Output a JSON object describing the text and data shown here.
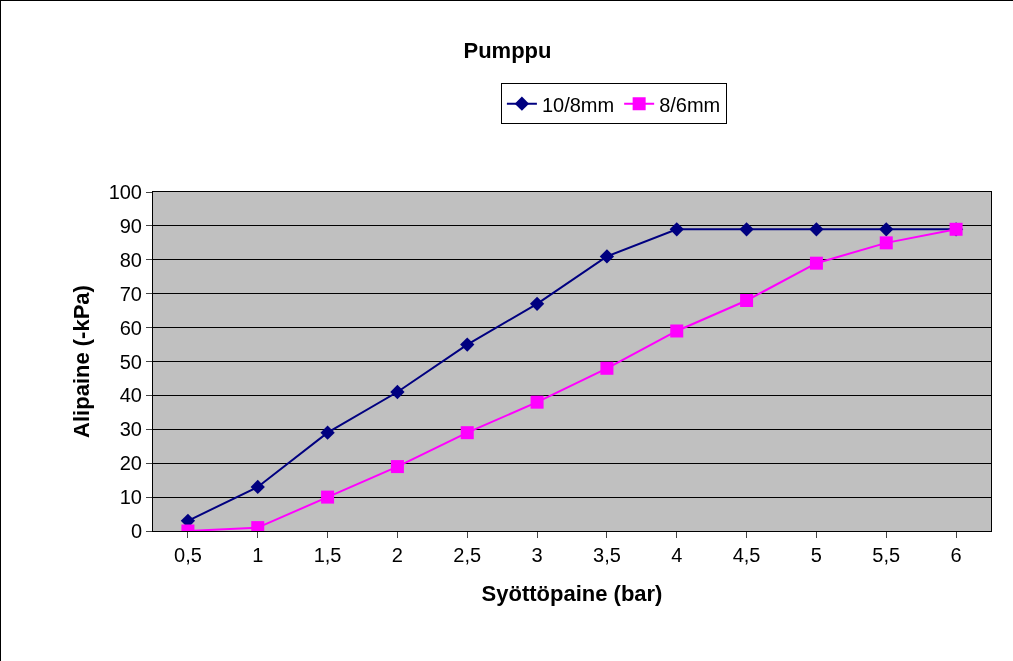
{
  "chart_data": {
    "type": "line",
    "title": "Pumppu",
    "xlabel": "Syöttöpaine (bar)",
    "ylabel": "Alipaine (-kPa)",
    "categories": [
      "0,5",
      "1",
      "1,5",
      "2",
      "2,5",
      "3",
      "3,5",
      "4",
      "4,5",
      "5",
      "5,5",
      "6"
    ],
    "series": [
      {
        "name": "10/8mm",
        "color": "#000080",
        "marker": "diamond",
        "values": [
          3,
          13,
          29,
          41,
          55,
          67,
          81,
          89,
          89,
          89,
          89,
          89
        ]
      },
      {
        "name": "8/6mm",
        "color": "#ff00ff",
        "marker": "square",
        "values": [
          0,
          1,
          10,
          19,
          29,
          38,
          48,
          59,
          68,
          79,
          85,
          89
        ]
      }
    ],
    "ylim": [
      0,
      100
    ],
    "yticks": [
      0,
      10,
      20,
      30,
      40,
      50,
      60,
      70,
      80,
      90,
      100
    ],
    "grid": "y",
    "legend": "top",
    "line_style": "solid"
  }
}
